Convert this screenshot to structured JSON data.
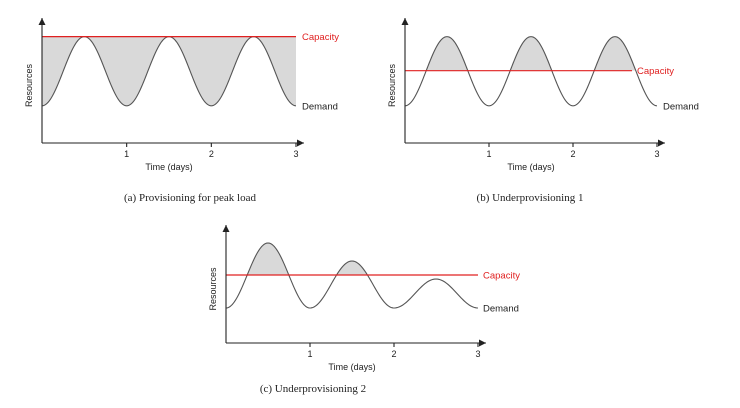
{
  "colors": {
    "capacity": "#e02020",
    "demand": "#555555",
    "shaded": "#d9d9d9",
    "axis": "#222222"
  },
  "chart_data": [
    {
      "type": "line",
      "caption": "(a) Provisioning for peak load",
      "xlabel": "Time (days)",
      "ylabel": "Resources",
      "xticks": [
        "1",
        "2",
        "3"
      ],
      "xlim": [
        0,
        3
      ],
      "ylim": [
        0,
        1.1
      ],
      "capacity": {
        "label": "Capacity",
        "level": 1.0
      },
      "demand": {
        "label": "Demand",
        "baseline": 0.35,
        "peaks": [
          1.0,
          1.0,
          1.0
        ]
      },
      "shaded": "capacity above demand",
      "grid": false
    },
    {
      "type": "line",
      "caption": "(b) Underprovisioning 1",
      "xlabel": "Time (days)",
      "ylabel": "Resources",
      "xticks": [
        "1",
        "2",
        "3"
      ],
      "xlim": [
        0,
        3
      ],
      "ylim": [
        0,
        1.1
      ],
      "capacity": {
        "label": "Capacity",
        "level": 0.68
      },
      "demand": {
        "label": "Demand",
        "baseline": 0.35,
        "peaks": [
          1.0,
          1.0,
          1.0
        ]
      },
      "shaded": "demand above capacity",
      "grid": false
    },
    {
      "type": "line",
      "caption": "(c) Underprovisioning 2",
      "xlabel": "Time (days)",
      "ylabel": "Resources",
      "xticks": [
        "1",
        "2",
        "3"
      ],
      "xlim": [
        0,
        3
      ],
      "ylim": [
        0,
        1.1
      ],
      "capacity": {
        "label": "Capacity",
        "level": 0.68
      },
      "demand": {
        "label": "Demand",
        "baseline": 0.35,
        "peaks": [
          1.0,
          0.82,
          0.64
        ]
      },
      "shaded": "demand above capacity",
      "grid": false
    }
  ]
}
